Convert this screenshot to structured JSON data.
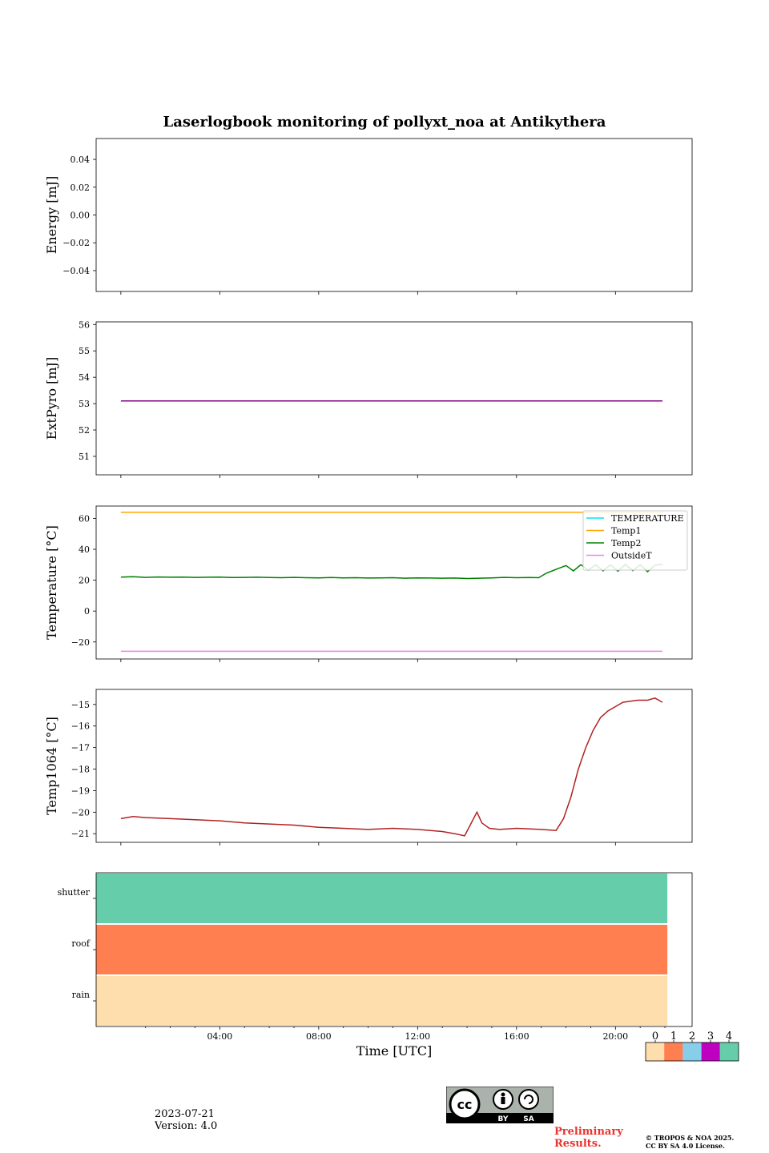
{
  "title": "Laserlogbook monitoring of pollyxt_noa at Antikythera",
  "footer": {
    "date": "2023-07-21",
    "version": "Version: 4.0",
    "preliminary_line1": "Preliminary",
    "preliminary_line2": "Results.",
    "copyright_line1": "© TROPOS & NOA 2025.",
    "copyright_line2": "CC BY SA 4.0 License.",
    "license_badge": {
      "cc": "cc",
      "by": "BY",
      "sa": "SA"
    }
  },
  "chart_data": [
    {
      "id": "energy",
      "type": "line",
      "ylabel": "Energy [mJ]",
      "ylim": [
        -0.055,
        0.055
      ],
      "yticks": [
        0.04,
        0.02,
        0.0,
        -0.02,
        -0.04
      ],
      "ytick_labels": [
        "0.04",
        "0.02",
        "0.00",
        "−0.02",
        "−0.04"
      ],
      "series": []
    },
    {
      "id": "extpyro",
      "type": "line",
      "ylabel": "ExtPyro [mJ]",
      "ylim": [
        50.3,
        56.1
      ],
      "yticks": [
        56,
        55,
        54,
        53,
        52,
        51
      ],
      "ytick_labels": [
        "56",
        "55",
        "54",
        "53",
        "52",
        "51"
      ],
      "series": [
        {
          "color": "#800080",
          "x": [
            0.0,
            21.9
          ],
          "y": [
            53.1,
            53.1
          ]
        }
      ]
    },
    {
      "id": "temperature",
      "type": "line",
      "ylabel": "Temperature [°C]",
      "ylim": [
        -31,
        68
      ],
      "yticks": [
        60,
        40,
        20,
        0,
        -20
      ],
      "ytick_labels": [
        "60",
        "40",
        "20",
        "0",
        "−20"
      ],
      "legend_position": "top-right",
      "series": [
        {
          "name": "TEMPERATURE",
          "color": "#00e5ee",
          "x": [],
          "y": []
        },
        {
          "name": "Temp1",
          "color": "#ffa500",
          "x": [
            0.0,
            21.9
          ],
          "y": [
            64,
            64
          ]
        },
        {
          "name": "Temp2",
          "color": "#008000",
          "x": [
            0.0,
            0.5,
            1.0,
            1.5,
            2.0,
            2.5,
            3.0,
            3.5,
            4.0,
            4.5,
            5.0,
            5.5,
            6.0,
            6.5,
            7.0,
            7.5,
            8.0,
            8.5,
            9.0,
            9.5,
            10.0,
            10.5,
            11.0,
            11.5,
            12.0,
            12.5,
            13.0,
            13.5,
            14.0,
            14.5,
            15.0,
            15.5,
            16.0,
            16.5,
            16.9,
            17.2,
            17.6,
            18.0,
            18.3,
            18.6,
            18.9,
            19.2,
            19.5,
            19.8,
            20.1,
            20.4,
            20.7,
            21.0,
            21.3,
            21.6,
            21.9
          ],
          "y": [
            22.0,
            22.3,
            21.8,
            22.1,
            21.9,
            22.0,
            21.8,
            21.9,
            22.0,
            21.7,
            21.8,
            21.9,
            21.7,
            21.6,
            21.8,
            21.6,
            21.5,
            21.7,
            21.5,
            21.6,
            21.4,
            21.5,
            21.6,
            21.3,
            21.5,
            21.4,
            21.3,
            21.4,
            21.1,
            21.3,
            21.5,
            21.8,
            21.6,
            21.7,
            21.6,
            24.5,
            27.0,
            29.5,
            26.0,
            30.0,
            26.5,
            30.0,
            26.0,
            30.0,
            25.8,
            30.2,
            26.2,
            30.0,
            25.5,
            29.8,
            30.2
          ]
        },
        {
          "name": "OutsideT",
          "color": "#ee82ee",
          "x": [
            0.0,
            21.9
          ],
          "y": [
            -26,
            -26
          ]
        }
      ]
    },
    {
      "id": "temp1064",
      "type": "line",
      "ylabel": "Temp1064 [°C]",
      "ylim": [
        -21.4,
        -14.3
      ],
      "yticks": [
        -15,
        -16,
        -17,
        -18,
        -19,
        -20,
        -21
      ],
      "ytick_labels": [
        "−15",
        "−16",
        "−17",
        "−18",
        "−19",
        "−20",
        "−21"
      ],
      "series": [
        {
          "color": "#b22222",
          "x": [
            0.0,
            0.5,
            1.0,
            2.0,
            3.0,
            4.0,
            5.0,
            6.0,
            7.0,
            8.0,
            9.0,
            10.0,
            11.0,
            12.0,
            13.0,
            13.5,
            13.9,
            14.4,
            14.6,
            14.9,
            15.3,
            16.0,
            17.0,
            17.6,
            17.9,
            18.2,
            18.5,
            18.8,
            19.1,
            19.4,
            19.7,
            20.0,
            20.3,
            20.6,
            20.9,
            21.3,
            21.6,
            21.9
          ],
          "y": [
            -20.3,
            -20.2,
            -20.25,
            -20.3,
            -20.35,
            -20.4,
            -20.5,
            -20.55,
            -20.6,
            -20.7,
            -20.75,
            -20.8,
            -20.75,
            -20.8,
            -20.9,
            -21.0,
            -21.1,
            -20.0,
            -20.5,
            -20.75,
            -20.8,
            -20.75,
            -20.8,
            -20.85,
            -20.3,
            -19.3,
            -18.0,
            -17.0,
            -16.2,
            -15.6,
            -15.3,
            -15.1,
            -14.9,
            -14.85,
            -14.8,
            -14.8,
            -14.7,
            -14.9
          ]
        }
      ]
    },
    {
      "id": "status",
      "type": "heatmap",
      "rows": [
        "shutter",
        "roof",
        "rain"
      ],
      "row_values": [
        4,
        1,
        0
      ],
      "x_extent": [
        0.0,
        22.1
      ],
      "colormap": {
        "ticks": [
          "0",
          "1",
          "2",
          "3",
          "4"
        ],
        "colors": [
          "#ffdead",
          "#ff7f50",
          "#87ceeb",
          "#c000c0",
          "#66cdaa"
        ]
      }
    }
  ],
  "x_axis": {
    "xlabel": "Time [UTC]",
    "xlim": [
      -1.0,
      23.1
    ],
    "xticks": [
      4,
      8,
      12,
      16,
      20
    ],
    "xtick_labels": [
      "04:00",
      "08:00",
      "12:00",
      "16:00",
      "20:00"
    ]
  }
}
